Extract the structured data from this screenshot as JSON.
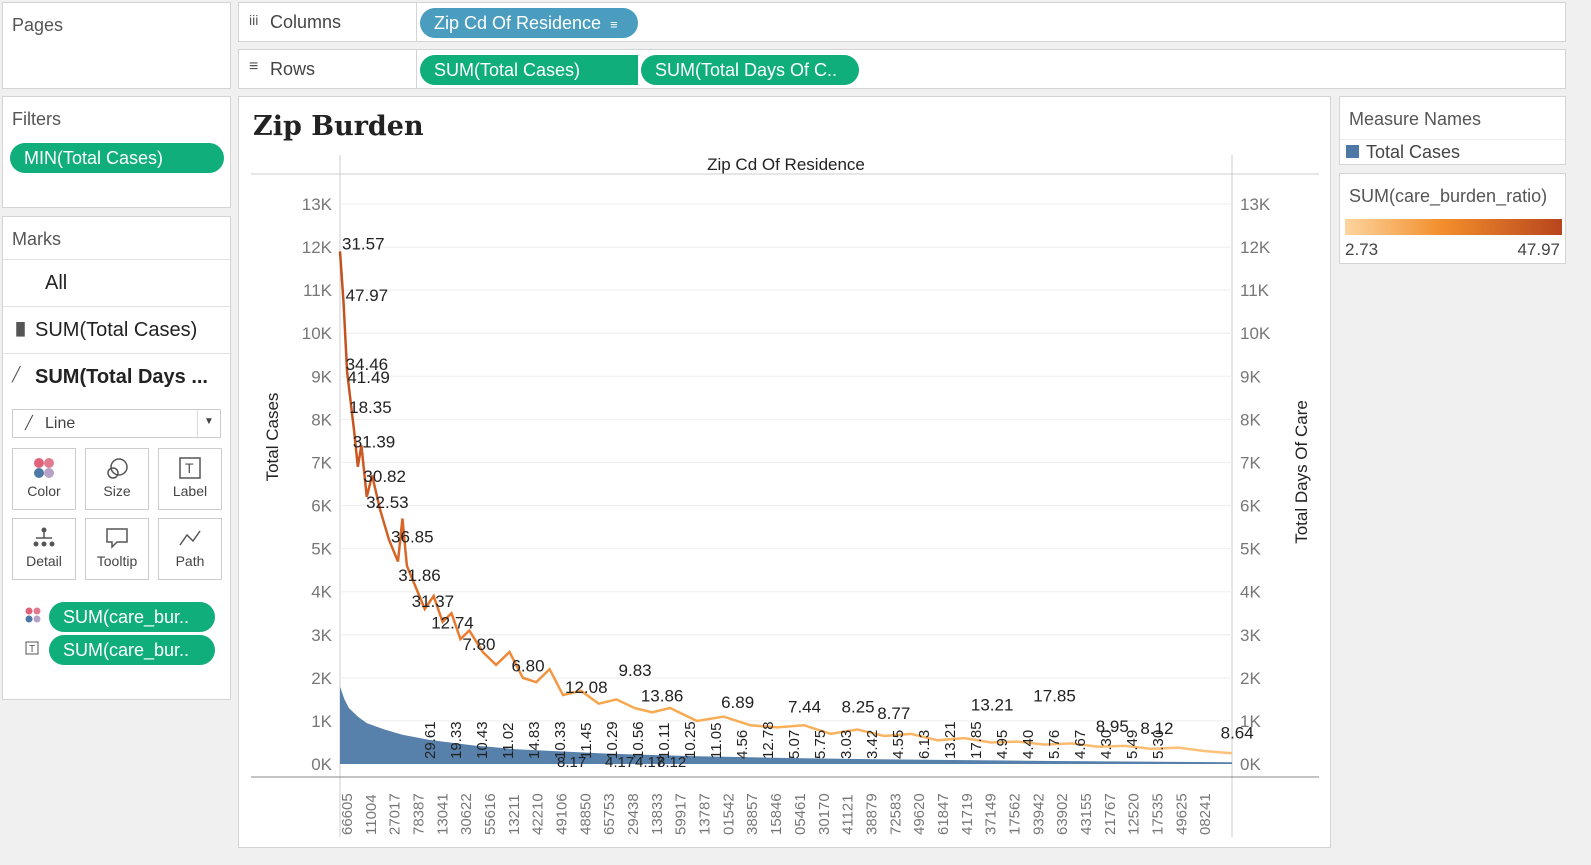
{
  "shelves": {
    "pages_label": "Pages",
    "columns_label": "Columns",
    "columns_pill": "Zip Cd Of Residence",
    "rows_label": "Rows",
    "rows_pills": [
      "SUM(Total Cases)",
      "SUM(Total Days Of C.."
    ]
  },
  "filters": {
    "title": "Filters",
    "pill": "MIN(Total Cases)"
  },
  "marks": {
    "title": "Marks",
    "all": "All",
    "cards": [
      "SUM(Total Cases)",
      "SUM(Total Days ..."
    ],
    "mark_type": "Line",
    "buttons": [
      "Color",
      "Size",
      "Label",
      "Detail",
      "Tooltip",
      "Path"
    ],
    "field_pills": [
      "SUM(care_bur..",
      "SUM(care_bur.."
    ]
  },
  "legend": {
    "measure_names_title": "Measure Names",
    "measure_item": "Total Cases",
    "measure_color": "#4e79a7",
    "ratio_title": "SUM(care_burden_ratio)",
    "ratio_min": "2.73",
    "ratio_max": "47.97",
    "ratio_colors": [
      "#fdd49e",
      "#f28e2b",
      "#b8451e"
    ]
  },
  "chart_data": {
    "type": "line",
    "title": "Zip Burden",
    "column_header": "Zip Cd Of Residence",
    "ylabel_left": "Total Cases",
    "ylabel_right": "Total Days Of Care",
    "y_ticks": [
      "0K",
      "1K",
      "2K",
      "3K",
      "4K",
      "5K",
      "6K",
      "7K",
      "8K",
      "9K",
      "10K",
      "11K",
      "12K",
      "13K"
    ],
    "ylim": [
      0,
      13000
    ],
    "x_ticks": [
      "66605",
      "11004",
      "27017",
      "78387",
      "13041",
      "30622",
      "55616",
      "13211",
      "42210",
      "49106",
      "48850",
      "65753",
      "29438",
      "13833",
      "59917",
      "13787",
      "01542",
      "38857",
      "15846",
      "05461",
      "30170",
      "41121",
      "38879",
      "72583",
      "49620",
      "61847",
      "41719",
      "37149",
      "17562",
      "93942",
      "63902",
      "43155",
      "21767",
      "12520",
      "17535",
      "49625",
      "08241"
    ],
    "series": [
      {
        "name": "Total Cases",
        "x_fraction": [
          0,
          0.005,
          0.01,
          0.02,
          0.03,
          0.05,
          0.07,
          0.1,
          0.15,
          0.2,
          0.3,
          0.4,
          0.5,
          0.6,
          0.7,
          0.8,
          0.9,
          1.0
        ],
        "values": [
          1800,
          1500,
          1300,
          1100,
          950,
          800,
          680,
          560,
          430,
          340,
          240,
          180,
          140,
          110,
          90,
          70,
          55,
          40
        ]
      },
      {
        "name": "Total Days Of Care",
        "x_fraction": [
          0,
          0.004,
          0.008,
          0.012,
          0.016,
          0.02,
          0.024,
          0.03,
          0.036,
          0.045,
          0.055,
          0.065,
          0.07,
          0.075,
          0.085,
          0.095,
          0.105,
          0.115,
          0.125,
          0.135,
          0.145,
          0.16,
          0.175,
          0.19,
          0.205,
          0.22,
          0.235,
          0.25,
          0.27,
          0.29,
          0.31,
          0.33,
          0.35,
          0.37,
          0.4,
          0.43,
          0.46,
          0.49,
          0.52,
          0.55,
          0.58,
          0.61,
          0.64,
          0.67,
          0.7,
          0.73,
          0.76,
          0.79,
          0.82,
          0.85,
          0.88,
          0.91,
          0.94,
          0.97,
          1.0
        ],
        "values": [
          11900,
          10700,
          9100,
          8400,
          7700,
          6900,
          7400,
          6200,
          6700,
          5900,
          5200,
          4700,
          5700,
          4600,
          4100,
          3600,
          3900,
          3300,
          3500,
          2900,
          3100,
          2600,
          2300,
          2600,
          2000,
          1900,
          2200,
          1600,
          1700,
          1400,
          1500,
          1300,
          1200,
          1300,
          1000,
          1100,
          900,
          850,
          900,
          700,
          800,
          650,
          700,
          550,
          600,
          500,
          520,
          450,
          480,
          400,
          420,
          350,
          380,
          300,
          250
        ],
        "color_scale": "care_burden_ratio"
      }
    ],
    "data_labels": [
      {
        "text": "31.57",
        "x_fraction": 0.0,
        "y": 11900
      },
      {
        "text": "47.97",
        "x_fraction": 0.004,
        "y": 10700
      },
      {
        "text": "34.46",
        "x_fraction": 0.004,
        "y": 9100
      },
      {
        "text": "41.49",
        "x_fraction": 0.006,
        "y": 8800
      },
      {
        "text": "18.35",
        "x_fraction": 0.008,
        "y": 8100
      },
      {
        "text": "31.39",
        "x_fraction": 0.012,
        "y": 7300
      },
      {
        "text": "30.82",
        "x_fraction": 0.024,
        "y": 6500
      },
      {
        "text": "32.53",
        "x_fraction": 0.027,
        "y": 5900
      },
      {
        "text": "36.85",
        "x_fraction": 0.055,
        "y": 5100
      },
      {
        "text": "31.86",
        "x_fraction": 0.063,
        "y": 4200
      },
      {
        "text": "31.37",
        "x_fraction": 0.078,
        "y": 3600
      },
      {
        "text": "12.74",
        "x_fraction": 0.1,
        "y": 3100
      },
      {
        "text": "7.80",
        "x_fraction": 0.135,
        "y": 2600
      },
      {
        "text": "6.80",
        "x_fraction": 0.19,
        "y": 2100
      },
      {
        "text": "12.08",
        "x_fraction": 0.25,
        "y": 1600
      },
      {
        "text": "9.83",
        "x_fraction": 0.31,
        "y": 2000
      },
      {
        "text": "13.86",
        "x_fraction": 0.335,
        "y": 1400
      },
      {
        "text": "6.89",
        "x_fraction": 0.425,
        "y": 1250
      },
      {
        "text": "7.44",
        "x_fraction": 0.5,
        "y": 1150
      },
      {
        "text": "8.25",
        "x_fraction": 0.56,
        "y": 1150
      },
      {
        "text": "8.77",
        "x_fraction": 0.6,
        "y": 1000
      },
      {
        "text": "13.21",
        "x_fraction": 0.705,
        "y": 1200
      },
      {
        "text": "17.85",
        "x_fraction": 0.775,
        "y": 1400
      },
      {
        "text": "8.95",
        "x_fraction": 0.845,
        "y": 700
      },
      {
        "text": "8.12",
        "x_fraction": 0.895,
        "y": 650
      },
      {
        "text": "8.64",
        "x_fraction": 0.985,
        "y": 550
      }
    ],
    "rotated_labels": [
      "29.61",
      "19.33",
      "10.43",
      "11.02",
      "14.83",
      "10.33",
      "11.45",
      "10.29",
      "10.56",
      "10.11",
      "10.25",
      "11.05",
      "4.56",
      "12.78",
      "5.07",
      "5.75",
      "3.03",
      "3.42",
      "4.55",
      "6.13",
      "13.21",
      "17.85",
      "4.95",
      "4.40",
      "5.76",
      "4.67",
      "4.30",
      "5.49",
      "5.30"
    ],
    "bottom_labels": [
      "8.17",
      "4.17",
      "4.17",
      "8.12"
    ]
  }
}
